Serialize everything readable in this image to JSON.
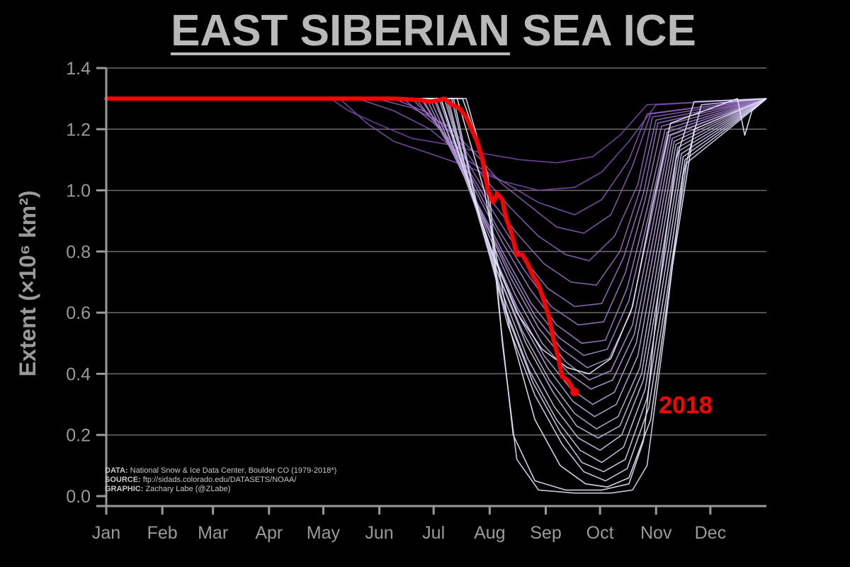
{
  "title": {
    "underlined_part": "EAST SIBERIAN",
    "rest": " SEA ICE"
  },
  "colors": {
    "background": "#000000",
    "title": "#b9b9b9",
    "axis": "#9a9a9a",
    "grid": "#6c6c6c",
    "highlight": "#ff0000",
    "year_lines_early": "#7a44a8",
    "year_lines_late": "#e8f1ff"
  },
  "credits": [
    {
      "label": "DATA:",
      "text": " National Snow & Ice Data Center, Boulder CO (1979-2018*)"
    },
    {
      "label": "SOURCE:",
      "text": " ftp://sidads.colorado.edu/DATASETS/NOAA/"
    },
    {
      "label": "GRAPHIC:",
      "text": " Zachary Labe (@ZLabe)"
    }
  ],
  "chart_data": {
    "type": "line",
    "title": "EAST SIBERIAN SEA ICE",
    "ylabel": "Extent (×10⁶ km²)",
    "xlabel": "",
    "x_unit": "day of year",
    "xlim": [
      1,
      366
    ],
    "ylim": [
      0.0,
      1.4
    ],
    "yticks": [
      0.0,
      0.2,
      0.4,
      0.6,
      0.8,
      1.0,
      1.2,
      1.4
    ],
    "ytick_labels": [
      "0.0",
      "0.2",
      "0.4",
      "0.6",
      "0.8",
      "1.0",
      "1.2",
      "1.4"
    ],
    "xtick_days": [
      1,
      32,
      60,
      91,
      121,
      152,
      182,
      213,
      244,
      274,
      305,
      335
    ],
    "xtick_labels": [
      "Jan",
      "Feb",
      "Mar",
      "Apr",
      "May",
      "Jun",
      "Jul",
      "Aug",
      "Sep",
      "Oct",
      "Nov",
      "Dec"
    ],
    "grid": true,
    "legend": "none",
    "annotation": {
      "text": "2018",
      "color": "#ff0000"
    },
    "highlight_series": {
      "name": "2018",
      "x": [
        1,
        150,
        160,
        175,
        180,
        185,
        188,
        192,
        196,
        200,
        203,
        206,
        209,
        212,
        215,
        217,
        220,
        222,
        225,
        228,
        231,
        234,
        237,
        240,
        243,
        246,
        248,
        251,
        253,
        256,
        258,
        260
      ],
      "y": [
        1.3,
        1.3,
        1.3,
        1.295,
        1.29,
        1.295,
        1.3,
        1.28,
        1.27,
        1.24,
        1.2,
        1.16,
        1.1,
        1.0,
        0.96,
        0.99,
        0.97,
        0.91,
        0.86,
        0.79,
        0.79,
        0.76,
        0.72,
        0.69,
        0.64,
        0.58,
        0.52,
        0.45,
        0.39,
        0.38,
        0.36,
        0.34
      ]
    },
    "series": [
      {
        "x": [
          1,
          125,
          135,
          150,
          170,
          190,
          210,
          230,
          250,
          270,
          285,
          300,
          366
        ],
        "y": [
          1.3,
          1.3,
          1.26,
          1.22,
          1.17,
          1.15,
          1.12,
          1.1,
          1.09,
          1.11,
          1.18,
          1.28,
          1.3
        ]
      },
      {
        "x": [
          1,
          130,
          145,
          160,
          180,
          200,
          220,
          240,
          260,
          275,
          290,
          305,
          366
        ],
        "y": [
          1.3,
          1.3,
          1.22,
          1.16,
          1.12,
          1.08,
          1.03,
          1.0,
          1.01,
          1.06,
          1.16,
          1.28,
          1.3
        ]
      },
      {
        "x": [
          1,
          140,
          160,
          180,
          200,
          220,
          240,
          260,
          275,
          290,
          300,
          366
        ],
        "y": [
          1.3,
          1.3,
          1.26,
          1.2,
          1.1,
          1.03,
          0.96,
          0.92,
          0.97,
          1.1,
          1.25,
          1.3
        ]
      },
      {
        "x": [
          1,
          150,
          170,
          190,
          205,
          220,
          235,
          250,
          265,
          280,
          292,
          302,
          366
        ],
        "y": [
          1.3,
          1.3,
          1.27,
          1.21,
          1.12,
          1.02,
          0.95,
          0.88,
          0.86,
          0.92,
          1.08,
          1.25,
          1.3
        ]
      },
      {
        "x": [
          1,
          160,
          180,
          195,
          210,
          225,
          240,
          255,
          268,
          282,
          295,
          303,
          366
        ],
        "y": [
          1.3,
          1.3,
          1.25,
          1.17,
          1.04,
          0.94,
          0.85,
          0.79,
          0.77,
          0.85,
          1.02,
          1.24,
          1.3
        ]
      },
      {
        "x": [
          1,
          165,
          182,
          197,
          212,
          228,
          243,
          258,
          272,
          285,
          296,
          305,
          366
        ],
        "y": [
          1.3,
          1.3,
          1.22,
          1.13,
          0.98,
          0.86,
          0.76,
          0.7,
          0.69,
          0.8,
          1.0,
          1.23,
          1.3
        ]
      },
      {
        "x": [
          1,
          170,
          185,
          200,
          215,
          230,
          245,
          260,
          275,
          287,
          298,
          306,
          366
        ],
        "y": [
          1.3,
          1.3,
          1.21,
          1.08,
          0.93,
          0.79,
          0.68,
          0.62,
          0.63,
          0.78,
          0.99,
          1.22,
          1.3
        ]
      },
      {
        "x": [
          1,
          172,
          187,
          202,
          217,
          232,
          247,
          262,
          276,
          288,
          299,
          308,
          366
        ],
        "y": [
          1.3,
          1.3,
          1.19,
          1.05,
          0.88,
          0.74,
          0.62,
          0.56,
          0.57,
          0.73,
          0.97,
          1.21,
          1.3
        ]
      },
      {
        "x": [
          1,
          175,
          190,
          205,
          220,
          235,
          250,
          264,
          277,
          289,
          300,
          310,
          366
        ],
        "y": [
          1.3,
          1.3,
          1.16,
          1.0,
          0.83,
          0.68,
          0.56,
          0.5,
          0.51,
          0.68,
          0.94,
          1.2,
          1.3
        ]
      },
      {
        "x": [
          1,
          176,
          191,
          206,
          221,
          236,
          251,
          265,
          278,
          290,
          301,
          311,
          366
        ],
        "y": [
          1.3,
          1.3,
          1.14,
          0.96,
          0.79,
          0.63,
          0.52,
          0.46,
          0.48,
          0.64,
          0.92,
          1.19,
          1.3
        ]
      },
      {
        "x": [
          1,
          178,
          193,
          208,
          223,
          238,
          253,
          267,
          279,
          291,
          302,
          312,
          366
        ],
        "y": [
          1.3,
          1.3,
          1.12,
          0.93,
          0.75,
          0.59,
          0.48,
          0.42,
          0.45,
          0.6,
          0.9,
          1.18,
          1.3
        ]
      },
      {
        "x": [
          1,
          180,
          195,
          210,
          225,
          240,
          255,
          268,
          280,
          292,
          303,
          313,
          366
        ],
        "y": [
          1.3,
          1.3,
          1.1,
          0.9,
          0.71,
          0.55,
          0.44,
          0.38,
          0.41,
          0.56,
          0.88,
          1.18,
          1.3
        ]
      },
      {
        "x": [
          1,
          182,
          197,
          212,
          227,
          242,
          257,
          269,
          281,
          293,
          304,
          314,
          366
        ],
        "y": [
          1.3,
          1.3,
          1.08,
          0.86,
          0.66,
          0.5,
          0.4,
          0.35,
          0.38,
          0.53,
          0.86,
          1.17,
          1.3
        ]
      },
      {
        "x": [
          1,
          183,
          198,
          213,
          228,
          243,
          258,
          270,
          282,
          294,
          305,
          315,
          366
        ],
        "y": [
          1.3,
          1.3,
          1.06,
          0.82,
          0.62,
          0.46,
          0.35,
          0.3,
          0.34,
          0.5,
          0.84,
          1.16,
          1.3
        ]
      },
      {
        "x": [
          1,
          185,
          200,
          215,
          230,
          245,
          259,
          271,
          283,
          295,
          306,
          316,
          366
        ],
        "y": [
          1.3,
          1.3,
          1.04,
          0.79,
          0.58,
          0.42,
          0.31,
          0.26,
          0.3,
          0.46,
          0.82,
          1.15,
          1.3
        ]
      },
      {
        "x": [
          1,
          186,
          201,
          216,
          231,
          246,
          260,
          272,
          284,
          296,
          307,
          317,
          366
        ],
        "y": [
          1.3,
          1.3,
          1.02,
          0.75,
          0.54,
          0.38,
          0.27,
          0.22,
          0.26,
          0.42,
          0.8,
          1.14,
          1.3
        ]
      },
      {
        "x": [
          1,
          188,
          203,
          218,
          233,
          248,
          261,
          273,
          285,
          297,
          308,
          318,
          366
        ],
        "y": [
          1.3,
          1.3,
          1.0,
          0.72,
          0.5,
          0.34,
          0.23,
          0.19,
          0.23,
          0.4,
          0.78,
          1.13,
          1.3
        ]
      },
      {
        "x": [
          1,
          189,
          204,
          219,
          234,
          249,
          262,
          274,
          286,
          298,
          309,
          319,
          366
        ],
        "y": [
          1.3,
          1.3,
          0.98,
          0.68,
          0.45,
          0.29,
          0.19,
          0.15,
          0.2,
          0.38,
          0.76,
          1.12,
          1.3
        ]
      },
      {
        "x": [
          1,
          190,
          205,
          220,
          235,
          250,
          263,
          275,
          287,
          299,
          310,
          320,
          366
        ],
        "y": [
          1.3,
          1.3,
          0.95,
          0.64,
          0.41,
          0.25,
          0.15,
          0.11,
          0.16,
          0.35,
          0.74,
          1.11,
          1.3
        ]
      },
      {
        "x": [
          1,
          192,
          207,
          222,
          237,
          252,
          264,
          276,
          288,
          300,
          311,
          321,
          366
        ],
        "y": [
          1.3,
          1.3,
          0.92,
          0.6,
          0.37,
          0.21,
          0.11,
          0.08,
          0.12,
          0.32,
          0.72,
          1.1,
          1.3
        ]
      },
      {
        "x": [
          1,
          193,
          208,
          223,
          238,
          253,
          265,
          277,
          289,
          301,
          312,
          322,
          366
        ],
        "y": [
          1.3,
          1.3,
          0.9,
          0.56,
          0.33,
          0.17,
          0.08,
          0.05,
          0.09,
          0.29,
          0.7,
          1.09,
          1.3
        ]
      },
      {
        "x": [
          1,
          200,
          212,
          220,
          228,
          240,
          260,
          280,
          292,
          300,
          310,
          320,
          330,
          366
        ],
        "y": [
          1.3,
          1.3,
          1.05,
          0.5,
          0.12,
          0.02,
          0.01,
          0.01,
          0.02,
          0.1,
          0.55,
          1.05,
          1.28,
          1.3
        ]
      },
      {
        "x": [
          1,
          198,
          210,
          218,
          226,
          238,
          255,
          275,
          290,
          298,
          306,
          316,
          326,
          366
        ],
        "y": [
          1.3,
          1.3,
          1.1,
          0.62,
          0.2,
          0.05,
          0.02,
          0.02,
          0.04,
          0.18,
          0.65,
          1.1,
          1.29,
          1.3
        ]
      },
      {
        "x": [
          1,
          195,
          210,
          224,
          238,
          252,
          266,
          278,
          290,
          302,
          314,
          326,
          366
        ],
        "y": [
          1.3,
          1.3,
          1.0,
          0.55,
          0.25,
          0.1,
          0.04,
          0.03,
          0.06,
          0.25,
          0.75,
          1.2,
          1.3
        ]
      },
      {
        "x": [
          1,
          186,
          200,
          214,
          228,
          242,
          256,
          268,
          280,
          292,
          303,
          313,
          350,
          354,
          358,
          366
        ],
        "y": [
          1.3,
          1.3,
          1.05,
          0.8,
          0.6,
          0.48,
          0.42,
          0.4,
          0.45,
          0.62,
          0.95,
          1.22,
          1.3,
          1.18,
          1.26,
          1.3
        ]
      }
    ]
  }
}
